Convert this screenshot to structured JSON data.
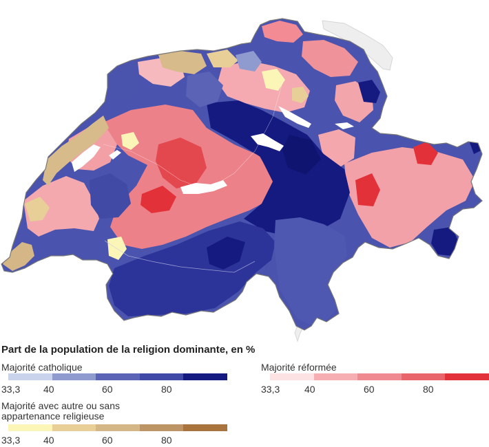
{
  "legend": {
    "title": "Part de la population de la religion dominante, en %",
    "groups": [
      {
        "id": "catholique",
        "label": "Majorité catholique",
        "colors": [
          "#c9d3ec",
          "#8f9bcf",
          "#5a63b6",
          "#404aa6",
          "#151a80"
        ],
        "ticks": [
          "33,3",
          "40",
          "60",
          "80"
        ]
      },
      {
        "id": "reformee",
        "label": "Majorité réformée",
        "colors": [
          "#fde2e4",
          "#f6aeb3",
          "#ee8a90",
          "#e8656c",
          "#e23138"
        ],
        "ticks": [
          "33,3",
          "40",
          "60",
          "80"
        ]
      },
      {
        "id": "autre",
        "label": "Majorité avec autre ou sans\nappartenance religieuse",
        "colors": [
          "#fbf5b8",
          "#e8cf98",
          "#d5b686",
          "#bd9465",
          "#a9733d"
        ],
        "ticks": [
          "33,3",
          "40",
          "60",
          "80"
        ]
      }
    ]
  }
}
